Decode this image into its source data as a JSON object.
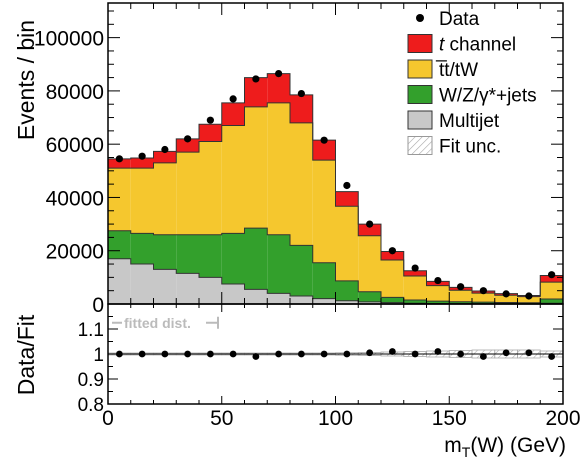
{
  "chart_data": {
    "type": "bar",
    "stacked": true,
    "xlabel_main": "m",
    "xlabel_sub": "T",
    "xlabel_tail": "(W) (GeV)",
    "ylabel": "Events / bin",
    "ratio_ylabel": "Data/Fit",
    "xlim": [
      0,
      200
    ],
    "ylim": [
      0,
      113000
    ],
    "ratio_ylim": [
      0.8,
      1.2
    ],
    "x_ticks": [
      0,
      50,
      100,
      150,
      200
    ],
    "y_ticks": [
      0,
      20000,
      40000,
      60000,
      80000,
      100000
    ],
    "ratio_y_ticks": [
      0.8,
      0.9,
      1,
      1.1
    ],
    "ratio_tick_labels": [
      "0.8",
      "0.9",
      "1",
      "1.1"
    ],
    "bin_edges": [
      0,
      10,
      20,
      30,
      40,
      50,
      60,
      70,
      80,
      90,
      100,
      110,
      120,
      130,
      140,
      150,
      160,
      170,
      180,
      190,
      200
    ],
    "bin_centers": [
      5,
      15,
      25,
      35,
      45,
      55,
      65,
      75,
      85,
      95,
      105,
      115,
      125,
      135,
      145,
      155,
      165,
      175,
      185,
      195
    ],
    "series": [
      {
        "name": "Multijet",
        "color": "#c8c8c8",
        "values": [
          17000,
          15000,
          13000,
          11500,
          10000,
          7500,
          5500,
          4000,
          3000,
          2000,
          1200,
          800,
          500,
          300,
          200,
          150,
          100,
          80,
          60,
          300
        ]
      },
      {
        "name": "W/Z/γ*+jets",
        "color": "#33a02c",
        "values": [
          10500,
          11500,
          13000,
          14500,
          16000,
          19000,
          23000,
          22000,
          19000,
          13500,
          7500,
          3800,
          2000,
          1200,
          900,
          700,
          600,
          500,
          400,
          1600
        ]
      },
      {
        "name": "t̅t/tW",
        "color": "#f5c72e",
        "values": [
          23500,
          24500,
          27000,
          31000,
          35000,
          40500,
          45500,
          49500,
          46000,
          38500,
          28000,
          21000,
          14000,
          9000,
          5800,
          4300,
          3400,
          2700,
          2300,
          6300
        ]
      },
      {
        "name": "t channel",
        "color": "#ee1c1c",
        "values": [
          3500,
          3800,
          4300,
          5000,
          6500,
          8500,
          11000,
          11000,
          10500,
          7500,
          5500,
          4400,
          3200,
          2000,
          1600,
          1100,
          800,
          600,
          440,
          2500
        ]
      }
    ],
    "data": {
      "name": "Data",
      "values": [
        54500,
        55500,
        58000,
        62000,
        69000,
        77000,
        84500,
        86500,
        79000,
        61500,
        44500,
        30000,
        20000,
        13500,
        8800,
        6500,
        5000,
        3800,
        3000,
        11000
      ]
    },
    "ratio": {
      "values": [
        1.0,
        1.0,
        1.0,
        1.0,
        1.0,
        1.0,
        0.99,
        1.0,
        1.0,
        1.0,
        1.0,
        1.005,
        1.01,
        1.0,
        1.01,
        1.0,
        0.99,
        1.005,
        1.005,
        0.99
      ],
      "band_halfwidth": [
        0.004,
        0.004,
        0.004,
        0.004,
        0.004,
        0.004,
        0.004,
        0.004,
        0.004,
        0.004,
        0.005,
        0.006,
        0.008,
        0.01,
        0.012,
        0.014,
        0.016,
        0.016,
        0.016,
        0.012
      ]
    },
    "legend": {
      "placement": "top-right",
      "entries": [
        {
          "label": "Data",
          "kind": "marker",
          "color": "#000000"
        },
        {
          "label": "t channel",
          "italic_first": true,
          "kind": "box",
          "color": "#ee1c1c"
        },
        {
          "label": "t̅t/tW",
          "kind": "box",
          "color": "#f5c72e"
        },
        {
          "label": "W/Z/γ*+jets",
          "kind": "box",
          "color": "#33a02c"
        },
        {
          "label": "Multijet",
          "kind": "box",
          "color": "#c8c8c8"
        },
        {
          "label": "Fit unc.",
          "kind": "hatch",
          "color": "#aaaaaa"
        }
      ]
    },
    "ratio_legend": "fitted dist."
  }
}
